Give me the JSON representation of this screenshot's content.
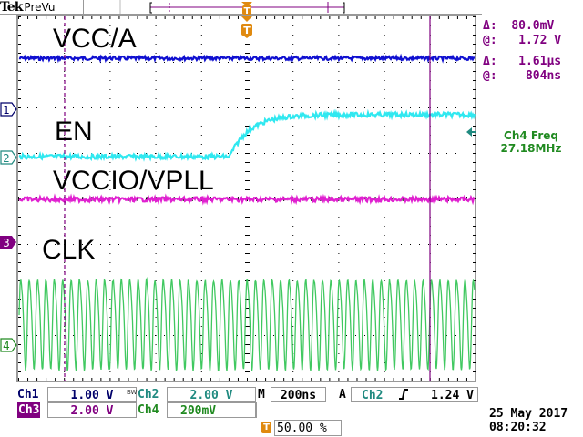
{
  "header": {
    "brand": "Tek",
    "mode": "PreVu",
    "trigger_marker": "T"
  },
  "measurements": {
    "delta_v_label": "Δ:",
    "delta_v": "80.0mV",
    "at_v_label": "@:",
    "at_v": "1.72 V",
    "delta_t_label": "Δ:",
    "delta_t": "1.61µs",
    "at_t_label": "@:",
    "at_t": "804ns"
  },
  "frequency": {
    "label": "Ch4 Freq",
    "value": "27.18MHz"
  },
  "traces": [
    {
      "label": "VCC/A",
      "color": "#1010d0",
      "marker": "1",
      "marker_color": "#00006a"
    },
    {
      "label": "EN",
      "color": "#30e8f0",
      "marker": "2",
      "marker_color": "#208a80"
    },
    {
      "label": "VCCIO/VPLL",
      "color": "#e020d0",
      "marker": "3",
      "marker_color": "#800080"
    },
    {
      "label": "CLK",
      "color": "#40c860",
      "marker": "4",
      "marker_color": "#208a20"
    }
  ],
  "channels": {
    "ch1": {
      "name": "Ch1",
      "scale": "1.00 V",
      "color": "#00006a"
    },
    "bw": "BW",
    "ch2": {
      "name": "Ch2",
      "scale": "2.00 V",
      "color": "#208a80"
    },
    "ch3": {
      "name": "Ch3",
      "scale": "2.00 V",
      "color": "#800080"
    },
    "ch4": {
      "name": "Ch4",
      "scale": "200mV",
      "color": "#208a20"
    }
  },
  "timebase": {
    "label": "M",
    "value": "200ns"
  },
  "trigger": {
    "mode": "A",
    "source": "Ch2",
    "slope": "rising",
    "slope_glyph": "⨍",
    "level": "1.24 V"
  },
  "trigger_position": {
    "icon": "T",
    "value": "50.00 %"
  },
  "datetime": {
    "date": "25 May 2017",
    "time": "08:20:32"
  },
  "accent": {
    "trigger_orange": "#e08a10",
    "cursor_purple": "#800080"
  }
}
